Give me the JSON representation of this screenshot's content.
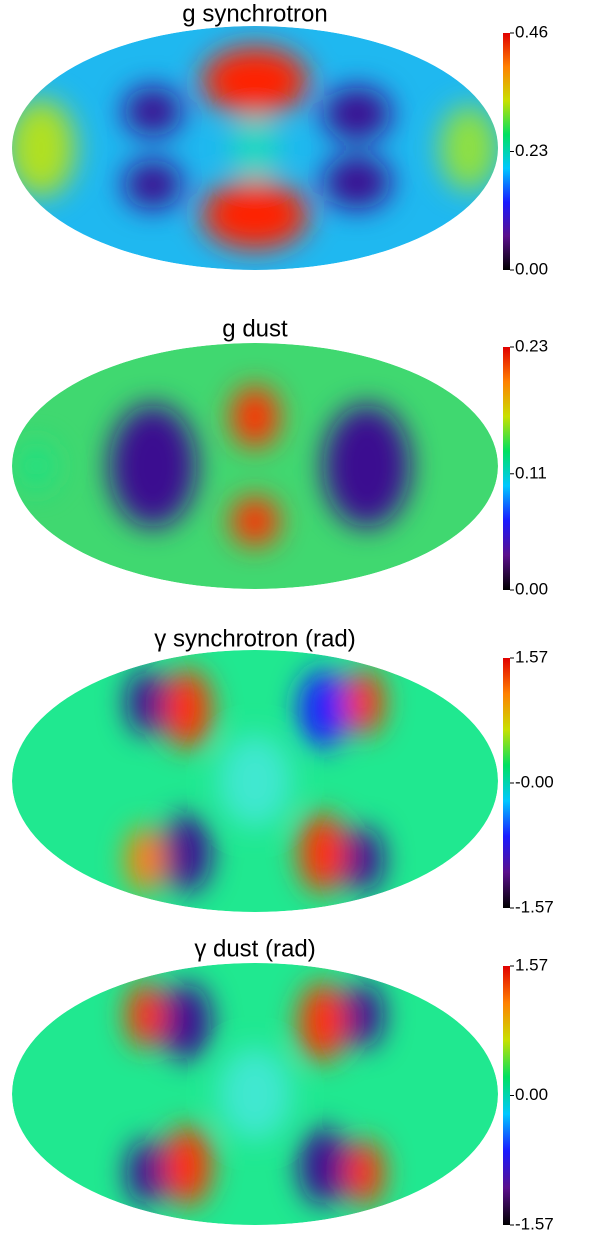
{
  "chart_data": [
    {
      "type": "map",
      "title": "g synchrotron",
      "ylim": [
        0,
        0.46
      ],
      "yticks": [
        0.46,
        0.23,
        {
          "value": 0,
          "label": "0.00"
        }
      ],
      "colormap": [
        "#000000",
        "#5a0f8c",
        "#1a1aff",
        "#00c8ff",
        "#00e060",
        "#c8e000",
        "#ff8000",
        "#e00000"
      ]
    },
    {
      "type": "map",
      "title": "g dust",
      "ylim": [
        0,
        0.23
      ],
      "yticks": [
        0.23,
        0.11,
        {
          "value": 0,
          "label": "0.00"
        }
      ],
      "colormap": [
        "#000000",
        "#5a0f8c",
        "#1a1aff",
        "#00c8ff",
        "#00e060",
        "#c8e000",
        "#ff8000",
        "#e00000"
      ]
    },
    {
      "type": "map",
      "title": "γ synchrotron (rad)",
      "ylim": [
        -1.57,
        1.57
      ],
      "yticks": [
        1.57,
        {
          "value": 0,
          "label": "-0.00"
        },
        -1.57
      ],
      "colormap": [
        "#000000",
        "#5a0f8c",
        "#1a1aff",
        "#00c8ff",
        "#00e060",
        "#c8e000",
        "#ff8000",
        "#e00000"
      ]
    },
    {
      "type": "map",
      "title": "γ dust (rad)",
      "ylim": [
        -1.57,
        1.57
      ],
      "yticks": [
        1.57,
        {
          "value": 0,
          "label": "0.00"
        },
        -1.57
      ],
      "colormap": [
        "#000000",
        "#5a0f8c",
        "#1a1aff",
        "#00c8ff",
        "#00e060",
        "#c8e000",
        "#ff8000",
        "#e00000"
      ]
    }
  ]
}
